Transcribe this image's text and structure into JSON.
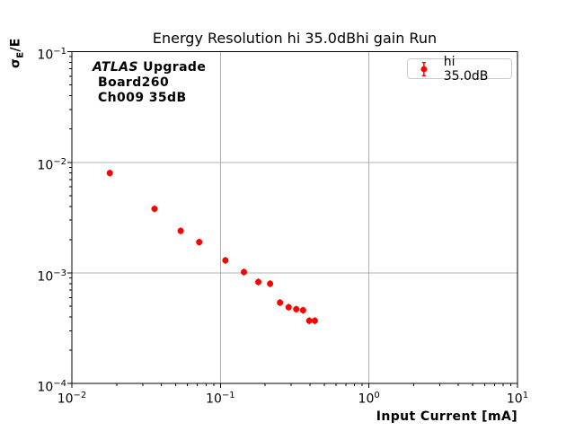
{
  "title": "Energy Resolution hi 35.0dBhi gain Run",
  "axes": {
    "xlabel": "Input Current [mA]",
    "ylabel": {
      "sigma": "σ",
      "sub": "E",
      "rest": "/E"
    }
  },
  "annotation": {
    "experiment": "ATLAS",
    "experiment_suffix": "Upgrade",
    "board": "Board260",
    "channel": "Ch009 35dB"
  },
  "legend": {
    "entries": [
      {
        "label": "hi 35.0dB",
        "marker": "errorbar-circle",
        "color": "#ff0000"
      }
    ]
  },
  "chart_data": {
    "type": "scatter",
    "title": "Energy Resolution hi 35.0dBhi gain Run",
    "xlabel": "Input Current [mA]",
    "ylabel": "sigma_E/E",
    "x_scale": "log",
    "y_scale": "log",
    "xlim": [
      0.01,
      10
    ],
    "ylim": [
      0.0001,
      0.1
    ],
    "x_tick_exponents": [
      -2,
      -1,
      0,
      1
    ],
    "y_tick_exponents": [
      -1,
      -2,
      -3,
      -4
    ],
    "grid": true,
    "legend_position": "upper right",
    "series": [
      {
        "name": "hi 35.0dB",
        "color": "#ff0000",
        "marker": "o",
        "linestyle": "none",
        "x": [
          0.018,
          0.036,
          0.054,
          0.072,
          0.108,
          0.144,
          0.18,
          0.216,
          0.252,
          0.288,
          0.324,
          0.36,
          0.396,
          0.432
        ],
        "y": [
          0.008,
          0.0038,
          0.0024,
          0.0019,
          0.0013,
          0.00102,
          0.00083,
          0.0008,
          0.00054,
          0.00049,
          0.00047,
          0.00046,
          0.00037,
          0.00037
        ]
      }
    ]
  },
  "colors": {
    "marker": "#ff0000",
    "grid": "#b0b0b0",
    "spine": "#000000",
    "legend_border": "#cccccc",
    "background": "#ffffff"
  }
}
